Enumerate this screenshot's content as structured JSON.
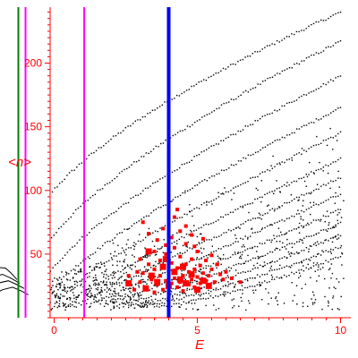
{
  "chart_data": {
    "type": "scatter",
    "title": "",
    "xlabel": "E",
    "ylabel": "<n>",
    "xlim": [
      -3.2,
      10.3
    ],
    "ylim": [
      0,
      245
    ],
    "grid": false,
    "legend": "none",
    "x_ticks": [
      0,
      5,
      10
    ],
    "y_ticks": [
      50,
      100,
      150,
      200
    ],
    "x_minor_step": 0.5,
    "y_minor_step": 5,
    "colors": {
      "axis": "#ff0000",
      "dots": "#000000",
      "highlight": "#ff0000",
      "green_line": "#008000",
      "magenta_line": "#ff00ff",
      "blue_line": "#0000ff"
    },
    "vertical_lines": [
      {
        "x": -1.25,
        "color": "#008000"
      },
      {
        "x": -1.0,
        "color": "#ff00ff"
      },
      {
        "x": 1.05,
        "color": "#ff00ff"
      },
      {
        "x": 4.0,
        "color": "#0000ff"
      }
    ],
    "branches": [
      {
        "start": [
          -1.0,
          60
        ],
        "end": [
          10.0,
          240
        ],
        "p": 0.62
      },
      {
        "start": [
          -0.6,
          40
        ],
        "end": [
          10.0,
          217
        ],
        "p": 0.68
      },
      {
        "start": [
          -0.3,
          28
        ],
        "end": [
          10.0,
          190
        ],
        "p": 0.74
      },
      {
        "start": [
          0.0,
          22
        ],
        "end": [
          10.0,
          165
        ],
        "p": 0.8
      },
      {
        "start": [
          0.3,
          18
        ],
        "end": [
          10.0,
          145
        ],
        "p": 0.86
      },
      {
        "start": [
          0.7,
          15
        ],
        "end": [
          10.0,
          125
        ],
        "p": 0.92
      },
      {
        "start": [
          1.0,
          13
        ],
        "end": [
          10.0,
          110
        ],
        "p": 0.98
      },
      {
        "start": [
          1.4,
          12
        ],
        "end": [
          10.0,
          97
        ],
        "p": 1.04
      },
      {
        "start": [
          1.8,
          11
        ],
        "end": [
          10.0,
          85
        ],
        "p": 1.1
      },
      {
        "start": [
          2.2,
          10
        ],
        "end": [
          10.0,
          74
        ],
        "p": 1.16
      },
      {
        "start": [
          2.6,
          9
        ],
        "end": [
          10.0,
          65
        ],
        "p": 1.22
      },
      {
        "start": [
          3.0,
          9
        ],
        "end": [
          10.0,
          56
        ],
        "p": 1.28
      },
      {
        "start": [
          3.5,
          8
        ],
        "end": [
          10.0,
          48
        ],
        "p": 1.34
      }
    ],
    "low_curves": [
      [
        [
          -3.2,
          34
        ],
        [
          -2.5,
          38
        ],
        [
          -2.0,
          39.5
        ],
        [
          -1.7,
          39
        ],
        [
          -1.5,
          35
        ],
        [
          -1.3,
          30
        ]
      ],
      [
        [
          -3.0,
          26
        ],
        [
          -2.2,
          32
        ],
        [
          -1.8,
          34
        ],
        [
          -1.5,
          31
        ],
        [
          -1.2,
          27
        ]
      ],
      [
        [
          -2.7,
          21
        ],
        [
          -2.0,
          27
        ],
        [
          -1.6,
          29
        ],
        [
          -1.3,
          26
        ],
        [
          -1.05,
          23
        ]
      ],
      [
        [
          -2.3,
          16
        ],
        [
          -1.8,
          22
        ],
        [
          -1.45,
          24
        ],
        [
          -1.15,
          21
        ],
        [
          -0.9,
          18
        ]
      ]
    ],
    "highlight_points": [
      [
        2.8,
        22
      ],
      [
        3.0,
        28
      ],
      [
        3.1,
        35
      ],
      [
        3.2,
        24
      ],
      [
        3.3,
        42
      ],
      [
        3.4,
        30
      ],
      [
        3.5,
        20
      ],
      [
        3.5,
        38
      ],
      [
        3.6,
        26
      ],
      [
        3.7,
        45
      ],
      [
        3.7,
        33
      ],
      [
        3.8,
        22
      ],
      [
        3.9,
        50
      ],
      [
        3.9,
        29
      ],
      [
        4.0,
        36
      ],
      [
        4.0,
        18
      ],
      [
        4.1,
        27
      ],
      [
        4.1,
        43
      ],
      [
        4.2,
        55
      ],
      [
        4.2,
        31
      ],
      [
        4.3,
        24
      ],
      [
        4.3,
        39
      ],
      [
        4.4,
        48
      ],
      [
        4.4,
        28
      ],
      [
        4.5,
        33
      ],
      [
        4.5,
        21
      ],
      [
        4.6,
        42
      ],
      [
        4.6,
        58
      ],
      [
        4.7,
        26
      ],
      [
        4.7,
        36
      ],
      [
        4.8,
        30
      ],
      [
        4.8,
        46
      ],
      [
        4.9,
        24
      ],
      [
        4.9,
        38
      ],
      [
        5.0,
        32
      ],
      [
        5.0,
        52
      ],
      [
        5.1,
        27
      ],
      [
        5.1,
        41
      ],
      [
        5.2,
        35
      ],
      [
        5.3,
        29
      ],
      [
        5.3,
        45
      ],
      [
        5.4,
        33
      ],
      [
        5.5,
        38
      ],
      [
        5.6,
        28
      ],
      [
        5.7,
        42
      ],
      [
        5.8,
        34
      ],
      [
        5.9,
        30
      ],
      [
        6.0,
        36
      ],
      [
        6.2,
        31
      ],
      [
        6.5,
        28
      ],
      [
        3.3,
        66
      ],
      [
        3.6,
        61
      ],
      [
        3.9,
        57
      ],
      [
        4.1,
        63
      ],
      [
        4.4,
        68
      ],
      [
        4.6,
        72
      ],
      [
        4.2,
        79
      ],
      [
        3.1,
        75
      ],
      [
        3.5,
        52
      ],
      [
        4.9,
        56
      ],
      [
        5.2,
        62
      ],
      [
        5.5,
        49
      ],
      [
        3.0,
        46
      ],
      [
        2.6,
        33
      ],
      [
        2.9,
        36
      ],
      [
        4.8,
        65
      ],
      [
        3.8,
        70
      ],
      [
        4.3,
        85
      ]
    ],
    "highlight_large_points": [
      [
        3.2,
        23
      ],
      [
        3.4,
        33
      ],
      [
        3.6,
        28
      ],
      [
        3.8,
        40
      ],
      [
        4.0,
        25
      ],
      [
        4.2,
        36
      ],
      [
        4.4,
        30
      ],
      [
        4.6,
        27
      ],
      [
        4.8,
        34
      ],
      [
        5.0,
        22
      ],
      [
        5.2,
        29
      ],
      [
        5.4,
        25
      ],
      [
        3.9,
        46
      ],
      [
        4.5,
        40
      ],
      [
        2.6,
        27
      ],
      [
        3.3,
        52
      ]
    ]
  }
}
